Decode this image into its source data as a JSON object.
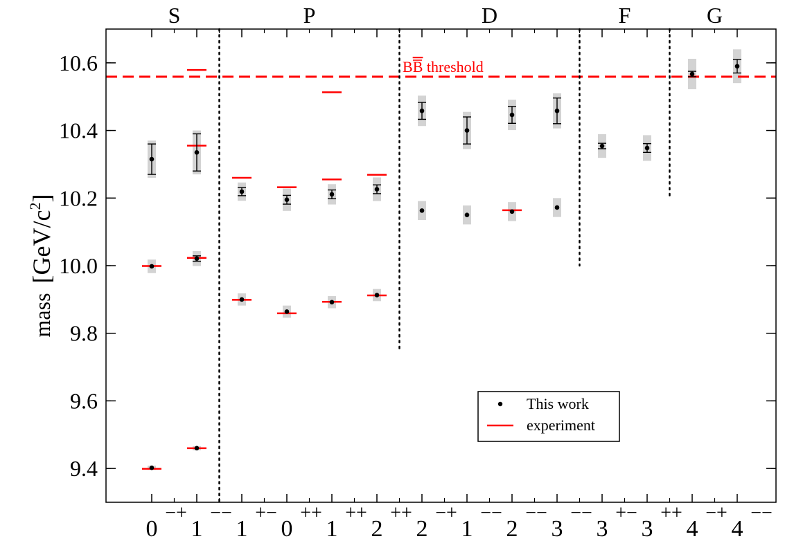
{
  "chart_data": {
    "type": "scatter",
    "title": "",
    "ylabel_main": "mass",
    "ylabel_unit_open": "[GeV/c",
    "ylabel_unit_exp": "2",
    "ylabel_unit_close": "]",
    "xlabel": "",
    "ylim": [
      9.3,
      10.7
    ],
    "yticks": [
      9.4,
      9.6,
      9.8,
      10.0,
      10.2,
      10.4,
      10.6
    ],
    "ytick_labels": [
      "9.4",
      "9.6",
      "9.8",
      "10.0",
      "10.2",
      "10.4",
      "10.6"
    ],
    "grid": false,
    "legend_position": "lower-right",
    "colors": {
      "this_work": "#000000",
      "experiment": "#ff0000",
      "band": "#d3d3d3",
      "divider": "#000000"
    },
    "channels": [
      {
        "j": "0",
        "pc": "−+"
      },
      {
        "j": "1",
        "pc": "−−"
      },
      {
        "j": "1",
        "pc": "+−"
      },
      {
        "j": "0",
        "pc": "++"
      },
      {
        "j": "1",
        "pc": "++"
      },
      {
        "j": "2",
        "pc": "++"
      },
      {
        "j": "2",
        "pc": "−+"
      },
      {
        "j": "1",
        "pc": "−−"
      },
      {
        "j": "2",
        "pc": "−−"
      },
      {
        "j": "3",
        "pc": "−−"
      },
      {
        "j": "3",
        "pc": "+−"
      },
      {
        "j": "3",
        "pc": "++"
      },
      {
        "j": "4",
        "pc": "−+"
      },
      {
        "j": "4",
        "pc": "−−"
      }
    ],
    "wave_labels": [
      {
        "label": "S",
        "center": 1.5
      },
      {
        "label": "P",
        "center": 4.5
      },
      {
        "label": "D",
        "center": 8.5
      },
      {
        "label": "F",
        "center": 11.5
      },
      {
        "label": "G",
        "center": 13.5
      }
    ],
    "dividers": [
      {
        "x": 2.5,
        "ymin": 9.3,
        "ymax": 10.7
      },
      {
        "x": 6.5,
        "ymin": 9.75,
        "ymax": 10.7
      },
      {
        "x": 10.5,
        "ymin": 10.0,
        "ymax": 10.7
      },
      {
        "x": 12.5,
        "ymin": 10.2,
        "ymax": 10.7
      }
    ],
    "threshold": {
      "value": 10.559,
      "label_main": "B",
      "label_bar": "B",
      "label_rest": " threshold"
    },
    "series": [
      {
        "name": "This work",
        "points": [
          {
            "x": 1,
            "y": 9.402,
            "err": 0.002,
            "band": 0.004
          },
          {
            "x": 1,
            "y": 9.998,
            "err": 0.004,
            "band": 0.02
          },
          {
            "x": 1,
            "y": 10.315,
            "err": 0.045,
            "band": 0.055
          },
          {
            "x": 2,
            "y": 9.46,
            "err": 0.002,
            "band": 0.004
          },
          {
            "x": 2,
            "y": 10.021,
            "err": 0.008,
            "band": 0.022
          },
          {
            "x": 2,
            "y": 10.335,
            "err": 0.055,
            "band": 0.065
          },
          {
            "x": 3,
            "y": 9.9,
            "err": 0.003,
            "band": 0.018
          },
          {
            "x": 3,
            "y": 10.219,
            "err": 0.012,
            "band": 0.027
          },
          {
            "x": 4,
            "y": 9.864,
            "err": 0.003,
            "band": 0.018
          },
          {
            "x": 4,
            "y": 10.195,
            "err": 0.013,
            "band": 0.033
          },
          {
            "x": 5,
            "y": 9.892,
            "err": 0.003,
            "band": 0.018
          },
          {
            "x": 5,
            "y": 10.211,
            "err": 0.013,
            "band": 0.03
          },
          {
            "x": 6,
            "y": 9.913,
            "err": 0.003,
            "band": 0.018
          },
          {
            "x": 6,
            "y": 10.226,
            "err": 0.013,
            "band": 0.035
          },
          {
            "x": 7,
            "y": 10.163,
            "err": 0.004,
            "band": 0.028
          },
          {
            "x": 7,
            "y": 10.458,
            "err": 0.025,
            "band": 0.045
          },
          {
            "x": 8,
            "y": 10.15,
            "err": 0.004,
            "band": 0.028
          },
          {
            "x": 8,
            "y": 10.4,
            "err": 0.04,
            "band": 0.055
          },
          {
            "x": 9,
            "y": 10.16,
            "err": 0.005,
            "band": 0.028
          },
          {
            "x": 9,
            "y": 10.446,
            "err": 0.025,
            "band": 0.045
          },
          {
            "x": 10,
            "y": 10.172,
            "err": 0.005,
            "band": 0.028
          },
          {
            "x": 10,
            "y": 10.458,
            "err": 0.038,
            "band": 0.052
          },
          {
            "x": 11,
            "y": 10.354,
            "err": 0.008,
            "band": 0.035
          },
          {
            "x": 12,
            "y": 10.348,
            "err": 0.013,
            "band": 0.038
          },
          {
            "x": 13,
            "y": 10.567,
            "err": 0.008,
            "band": 0.045
          },
          {
            "x": 14,
            "y": 10.59,
            "err": 0.02,
            "band": 0.05
          }
        ]
      },
      {
        "name": "experiment",
        "points": [
          {
            "x": 1,
            "y": 9.399
          },
          {
            "x": 1,
            "y": 9.999
          },
          {
            "x": 2,
            "y": 9.46
          },
          {
            "x": 2,
            "y": 10.023
          },
          {
            "x": 2,
            "y": 10.355
          },
          {
            "x": 2,
            "y": 10.579
          },
          {
            "x": 3,
            "y": 9.899
          },
          {
            "x": 3,
            "y": 10.26
          },
          {
            "x": 4,
            "y": 9.859
          },
          {
            "x": 4,
            "y": 10.232
          },
          {
            "x": 5,
            "y": 9.893
          },
          {
            "x": 5,
            "y": 10.255
          },
          {
            "x": 5,
            "y": 10.513
          },
          {
            "x": 6,
            "y": 9.912
          },
          {
            "x": 6,
            "y": 10.269
          },
          {
            "x": 9,
            "y": 10.164
          }
        ]
      }
    ]
  }
}
